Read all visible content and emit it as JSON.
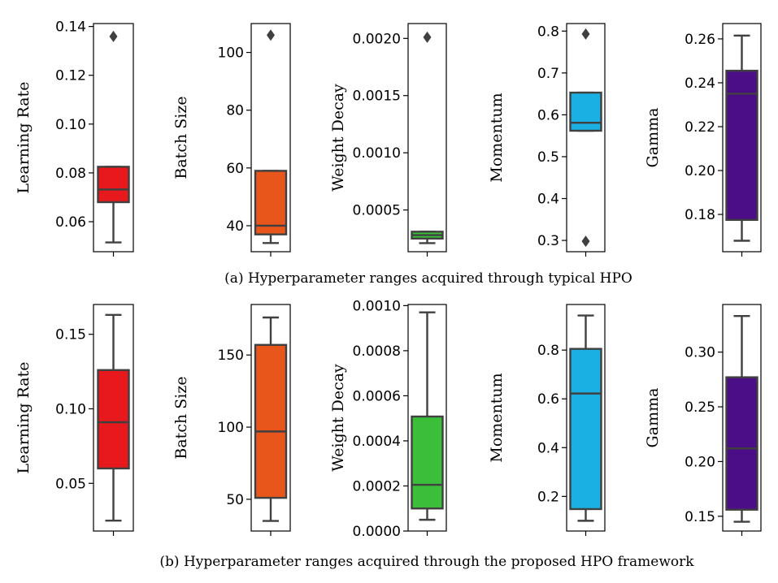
{
  "captions": {
    "a": "(a)  Hyperparameter ranges acquired through typical HPO",
    "b": "(b)  Hyperparameter ranges acquired through the proposed HPO framework"
  },
  "chart_data": [
    {
      "type": "box",
      "caption": "(a)  Hyperparameter ranges acquired through typical HPO",
      "panels": [
        {
          "ylabel": "Learning Rate",
          "color": "#e8191c",
          "ylim": [
            0.0477,
            0.1412
          ],
          "ticks": [
            0.06,
            0.08,
            0.1,
            0.12,
            0.14
          ],
          "tick_labels": [
            "0.06",
            "0.08",
            "0.10",
            "0.12",
            "0.14"
          ],
          "whisker_low": 0.0515,
          "q1": 0.068,
          "median": 0.0732,
          "q3": 0.0825,
          "whisker_high": 0.0825,
          "outliers": [
            0.1359
          ]
        },
        {
          "ylabel": "Batch Size",
          "color": "#e8561c",
          "ylim": [
            31,
            110
          ],
          "ticks": [
            40,
            60,
            80,
            100
          ],
          "tick_labels": [
            "40",
            "60",
            "80",
            "100"
          ],
          "whisker_low": 34,
          "q1": 37,
          "median": 40,
          "q3": 59,
          "whisker_high": 59,
          "outliers": [
            106
          ]
        },
        {
          "ylabel": "Weight Decay",
          "color": "#3bbf3b",
          "ylim": [
            0.000135,
            0.00213
          ],
          "ticks": [
            0.0005,
            0.001,
            0.0015,
            0.002
          ],
          "tick_labels": [
            "0.0005",
            "0.0010",
            "0.0015",
            "0.0020"
          ],
          "whisker_low": 0.00021,
          "q1": 0.00025,
          "median": 0.00028,
          "q3": 0.00031,
          "whisker_high": 0.00031,
          "outliers": [
            0.00201
          ]
        },
        {
          "ylabel": "Momentum",
          "color": "#1bb0e3",
          "ylim": [
            0.273,
            0.818
          ],
          "ticks": [
            0.3,
            0.4,
            0.5,
            0.6,
            0.7,
            0.8
          ],
          "tick_labels": [
            "0.3",
            "0.4",
            "0.5",
            "0.6",
            "0.7",
            "0.8"
          ],
          "whisker_low": 0.562,
          "q1": 0.562,
          "median": 0.581,
          "q3": 0.653,
          "whisker_high": 0.653,
          "outliers": [
            0.298,
            0.793
          ]
        },
        {
          "ylabel": "Gamma",
          "color": "#4b0e87",
          "ylim": [
            0.163,
            0.267
          ],
          "ticks": [
            0.18,
            0.2,
            0.22,
            0.24,
            0.26
          ],
          "tick_labels": [
            "0.18",
            "0.20",
            "0.22",
            "0.24",
            "0.26"
          ],
          "whisker_low": 0.168,
          "q1": 0.1775,
          "median": 0.235,
          "q3": 0.2455,
          "whisker_high": 0.2615,
          "outliers": []
        }
      ]
    },
    {
      "type": "box",
      "caption": "(b)  Hyperparameter ranges acquired through the proposed HPO framework",
      "panels": [
        {
          "ylabel": "Learning Rate",
          "color": "#e8191c",
          "ylim": [
            0.018,
            0.17
          ],
          "ticks": [
            0.05,
            0.1,
            0.15
          ],
          "tick_labels": [
            "0.05",
            "0.10",
            "0.15"
          ],
          "whisker_low": 0.025,
          "q1": 0.06,
          "median": 0.091,
          "q3": 0.126,
          "whisker_high": 0.163,
          "outliers": []
        },
        {
          "ylabel": "Batch Size",
          "color": "#e8561c",
          "ylim": [
            28,
            185
          ],
          "ticks": [
            50,
            100,
            150
          ],
          "tick_labels": [
            "50",
            "100",
            "150"
          ],
          "whisker_low": 35,
          "q1": 51,
          "median": 97,
          "q3": 157,
          "whisker_high": 176,
          "outliers": []
        },
        {
          "ylabel": "Weight Decay",
          "color": "#3bbf3b",
          "ylim": [
            0.0,
            0.001005
          ],
          "ticks": [
            0.0,
            0.0002,
            0.0004,
            0.0006,
            0.0008,
            0.001
          ],
          "tick_labels": [
            "0.0000",
            "0.0002",
            "0.0004",
            "0.0006",
            "0.0008",
            "0.0010"
          ],
          "whisker_low": 5e-05,
          "q1": 0.0001,
          "median": 0.000205,
          "q3": 0.000508,
          "whisker_high": 0.00097,
          "outliers": []
        },
        {
          "ylabel": "Momentum",
          "color": "#1bb0e3",
          "ylim": [
            0.058,
            0.987
          ],
          "ticks": [
            0.2,
            0.4,
            0.6,
            0.8
          ],
          "tick_labels": [
            "0.2",
            "0.4",
            "0.6",
            "0.8"
          ],
          "whisker_low": 0.1,
          "q1": 0.148,
          "median": 0.622,
          "q3": 0.805,
          "whisker_high": 0.942,
          "outliers": []
        },
        {
          "ylabel": "Gamma",
          "color": "#4b0e87",
          "ylim": [
            0.1365,
            0.3435
          ],
          "ticks": [
            0.15,
            0.2,
            0.25,
            0.3
          ],
          "tick_labels": [
            "0.15",
            "0.20",
            "0.25",
            "0.30"
          ],
          "whisker_low": 0.145,
          "q1": 0.156,
          "median": 0.212,
          "q3": 0.277,
          "whisker_high": 0.333,
          "outliers": []
        }
      ]
    }
  ]
}
